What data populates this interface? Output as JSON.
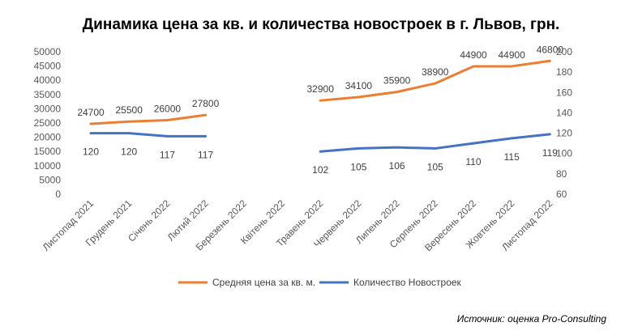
{
  "chart_data": {
    "type": "line",
    "title": "Динамика цена за кв. и количества новостроек в г. Львов, грн.",
    "categories": [
      "Листопад 2021",
      "Грудень 2021",
      "Січень 2022",
      "Лютий 2022",
      "Березень 2022",
      "Квітень 2022",
      "Травень 2022",
      "Червень 2022",
      "Липень 2022",
      "Серпень 2022",
      "Вересень 2022",
      "Жовтень 2022",
      "Листопад 2022"
    ],
    "y_left": {
      "min": 0,
      "max": 50000,
      "step": 5000
    },
    "y_right": {
      "min": 60,
      "max": 200,
      "step": 20
    },
    "series": [
      {
        "name": "Средняя цена за кв. м.",
        "axis": "left",
        "color": "#ED7D31",
        "values": [
          24700,
          25500,
          26000,
          27800,
          null,
          null,
          32900,
          34100,
          35900,
          38900,
          44900,
          44900,
          46800
        ],
        "labels": [
          "24700",
          "25500",
          "26000",
          "27800",
          "",
          "",
          "32900",
          "34100",
          "35900",
          "38900",
          "44900",
          "44900",
          "46800"
        ]
      },
      {
        "name": "Количество Новостроек",
        "axis": "right",
        "color": "#4472C4",
        "values": [
          120,
          120,
          117,
          117,
          null,
          null,
          102,
          105,
          106,
          105,
          110,
          115,
          119
        ],
        "labels": [
          "120",
          "120",
          "117",
          "117",
          "",
          "",
          "102",
          "105",
          "106",
          "105",
          "110",
          "115",
          "119"
        ]
      }
    ],
    "legend_position": "bottom",
    "grid": false
  },
  "source_note": "Источник: оценка Pro-Consulting"
}
